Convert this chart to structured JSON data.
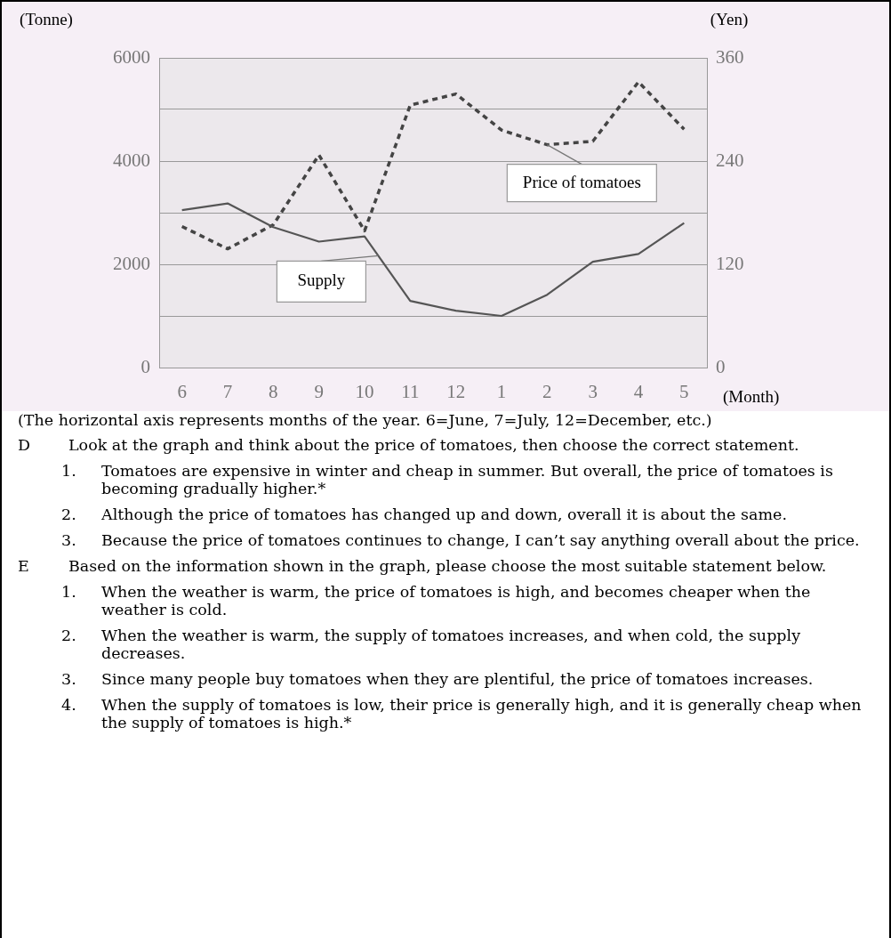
{
  "chart_data": {
    "type": "line",
    "categories": [
      "6",
      "7",
      "8",
      "9",
      "10",
      "11",
      "12",
      "1",
      "2",
      "3",
      "4",
      "5"
    ],
    "xlabel": "(Month)",
    "ylabel": "(Tonne)",
    "y2label": "(Yen)",
    "ylim": [
      0,
      6000
    ],
    "yticks": [
      0,
      {
        "value": 1000,
        "label": null
      },
      2000,
      {
        "value": 3000,
        "label": null
      },
      4000,
      {
        "value": 5000,
        "label": null
      },
      6000
    ],
    "y2lim": [
      0,
      360
    ],
    "y2ticks": [
      0,
      120,
      240,
      360
    ],
    "grid": "y",
    "legend": false,
    "marker": "none",
    "series": [
      {
        "name": "Supply",
        "color": "#555555",
        "line_style": "solid",
        "values": [
          3050,
          3180,
          2720,
          2440,
          2540,
          1290,
          1100,
          1000,
          1410,
          2050,
          2200,
          2800
        ]
      },
      {
        "name": "Price of tomatoes",
        "color": "#444444",
        "line_style": "dashed",
        "axis": "y2",
        "values": [
          164,
          138,
          166,
          247,
          159,
          305,
          318,
          276,
          259,
          263,
          332,
          277
        ]
      }
    ],
    "annotations": [
      "(The horizontal axis represents months of the year. 6=June, 7=July, 12=December, etc.)",
      "D Look at the graph and think about the price of tomatoes, then choose the correct statement.",
      "1. Tomatoes are expensive in winter and cheap in summer. But overall, the price of tomatoes is becoming gradually higher.*",
      "2. Although the price of tomatoes has changed up and down, overall it is about the same.",
      "3. Because the price of tomatoes continues to change, I can’t say anything overall about the price.",
      "E Based on the information shown in the graph, please choose the most suitable statement below.",
      "1. When the weather is warm, the price of tomatoes is high, and becomes cheaper when the weather is cold.",
      "2. When the weather is warm, the supply of tomatoes increases, and when cold, the supply decreases.",
      "3. Since many people buy tomatoes when they are plentiful, the price of tomatoes increases.",
      "4. When the supply of tomatoes is low, their price is generally high, and it is generally cheap when the supply of tomatoes is high.*"
    ]
  }
}
